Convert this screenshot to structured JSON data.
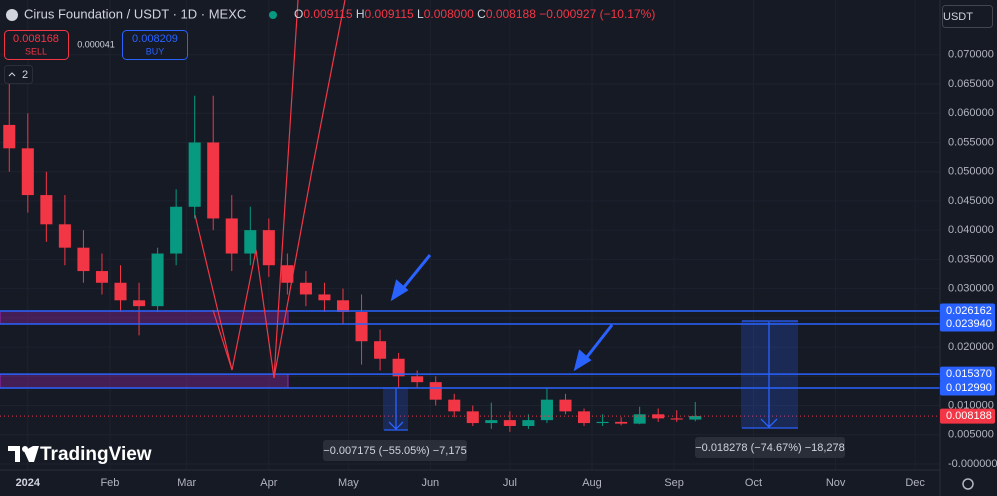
{
  "header": {
    "symbol": "Cirus Foundation / USDT · 1D · MEXC",
    "ohlc": [
      {
        "key": "O",
        "value": "0.009115"
      },
      {
        "key": "H",
        "value": "0.009115"
      },
      {
        "key": "L",
        "value": "0.008000"
      },
      {
        "key": "C",
        "value": "0.008188"
      }
    ],
    "change": "−0.000927 (−10.17%)",
    "sell_price": "0.008168",
    "sell": "SELL",
    "spread": "0.000041",
    "buy_price": "0.008209",
    "buy": "BUY",
    "indicators_count": "2",
    "currency": "USDT"
  },
  "measurements": [
    {
      "label": "−0.007175 (−55.05%) −7,175"
    },
    {
      "label": "−0.018278 (−74.67%) −18,278"
    }
  ],
  "branding": "TradingView",
  "chart_data": {
    "type": "candlestick",
    "categories": [
      null,
      null,
      null,
      null,
      null,
      null,
      null,
      null,
      null,
      null,
      null,
      null,
      null,
      null,
      null,
      null,
      null,
      null,
      null,
      null,
      null,
      null,
      null,
      null,
      null,
      null,
      null,
      null,
      null,
      null,
      null,
      null,
      null,
      null,
      null,
      null,
      null,
      null
    ],
    "open": [
      0.058,
      0.054,
      0.046,
      0.041,
      0.037,
      0.033,
      0.031,
      0.028,
      0.027,
      0.036,
      0.044,
      0.055,
      0.042,
      0.036,
      0.04,
      0.034,
      0.031,
      0.029,
      0.028,
      0.026,
      0.021,
      0.018,
      0.015,
      0.014,
      0.011,
      0.009,
      0.007,
      0.0075,
      0.0065,
      0.0075,
      0.011,
      0.009,
      0.007,
      0.0072,
      0.0069,
      0.0085,
      0.0078,
      0.0076
    ],
    "high": [
      0.065,
      0.06,
      0.05,
      0.046,
      0.04,
      0.036,
      0.034,
      0.031,
      0.037,
      0.047,
      0.063,
      0.063,
      0.046,
      0.044,
      0.042,
      0.036,
      0.033,
      0.031,
      0.03,
      0.029,
      0.023,
      0.019,
      0.016,
      0.015,
      0.012,
      0.01,
      0.0105,
      0.009,
      0.0085,
      0.013,
      0.012,
      0.0095,
      0.0085,
      0.008,
      0.0098,
      0.0095,
      0.0092,
      0.0106
    ],
    "low": [
      0.05,
      0.043,
      0.038,
      0.034,
      0.031,
      0.029,
      0.026,
      0.022,
      0.026,
      0.034,
      0.042,
      0.04,
      0.033,
      0.034,
      0.032,
      0.029,
      0.027,
      0.026,
      0.024,
      0.017,
      0.016,
      0.013,
      0.013,
      0.01,
      0.008,
      0.0065,
      0.006,
      0.0055,
      0.006,
      0.007,
      0.0085,
      0.0065,
      0.0065,
      0.0066,
      0.0068,
      0.0072,
      0.0072,
      0.0073
    ],
    "close": [
      0.054,
      0.046,
      0.041,
      0.037,
      0.033,
      0.031,
      0.028,
      0.027,
      0.036,
      0.044,
      0.055,
      0.042,
      0.036,
      0.04,
      0.034,
      0.031,
      0.029,
      0.028,
      0.026,
      0.021,
      0.018,
      0.015,
      0.014,
      0.011,
      0.009,
      0.007,
      0.0075,
      0.0065,
      0.0075,
      0.011,
      0.009,
      0.007,
      0.0072,
      0.0069,
      0.0085,
      0.0078,
      0.0076,
      0.0082
    ],
    "up_color": "#089981",
    "down_color": "#f23645",
    "xlim": [
      -0.5,
      50.2
    ],
    "xticks": [
      {
        "value": 1,
        "label": "2024"
      },
      {
        "value": 5.43,
        "label": "Feb"
      },
      {
        "value": 9.57,
        "label": "Mar"
      },
      {
        "value": 14,
        "label": "Apr"
      },
      {
        "value": 18.29,
        "label": "May"
      },
      {
        "value": 22.71,
        "label": "Jun"
      },
      {
        "value": 27,
        "label": "Jul"
      },
      {
        "value": 31.43,
        "label": "Aug"
      },
      {
        "value": 35.86,
        "label": "Sep"
      },
      {
        "value": 40.14,
        "label": "Oct"
      },
      {
        "value": 44.57,
        "label": "Nov"
      },
      {
        "value": 48.86,
        "label": "Dec"
      }
    ],
    "ylim": [
      -0.00103,
      0.07937
    ],
    "yticks": [
      {
        "value": 0,
        "label": "-0.000000"
      },
      {
        "value": 0.005,
        "label": "0.005000"
      },
      {
        "value": 0.01,
        "label": "0.010000"
      },
      {
        "value": 0.015,
        "label": "0.015000"
      },
      {
        "value": 0.02,
        "label": "0.020000"
      },
      {
        "value": 0.025,
        "label": "0.025000"
      },
      {
        "value": 0.03,
        "label": "0.030000"
      },
      {
        "value": 0.035,
        "label": "0.035000"
      },
      {
        "value": 0.04,
        "label": "0.040000"
      },
      {
        "value": 0.045,
        "label": "0.045000"
      },
      {
        "value": 0.05,
        "label": "0.050000"
      },
      {
        "value": 0.055,
        "label": "0.055000"
      },
      {
        "value": 0.06,
        "label": "0.060000"
      },
      {
        "value": 0.065,
        "label": "0.065000"
      },
      {
        "value": 0.07,
        "label": "0.070000"
      }
    ],
    "grid": true,
    "price_lines": [
      {
        "value": 0.026162,
        "label": "0.026162"
      },
      {
        "value": 0.02394,
        "label": "0.023940"
      },
      {
        "value": 0.01537,
        "label": "0.015370"
      },
      {
        "value": 0.01299,
        "label": "0.012990"
      }
    ],
    "price_line_color": "#2962ff",
    "last_price": {
      "value": 0.008188,
      "label": "0.008188"
    }
  }
}
